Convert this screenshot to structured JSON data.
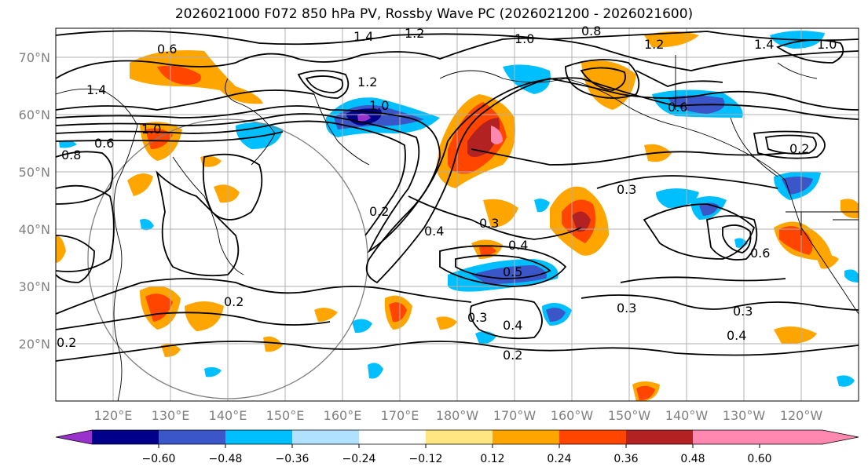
{
  "title": "2026021000 F072 850 hPa PV, Rossby Wave PC (2026021200 - 2026021600)",
  "lat_ticks": [
    "70°N",
    "60°N",
    "50°N",
    "40°N",
    "30°N",
    "20°N"
  ],
  "lon_ticks": [
    "120°E",
    "130°E",
    "140°E",
    "150°E",
    "160°E",
    "170°E",
    "180°W",
    "170°W",
    "160°W",
    "150°W",
    "140°W",
    "130°W",
    "120°W"
  ],
  "colorbar": {
    "ticks": [
      "−0.60",
      "−0.48",
      "−0.36",
      "−0.24",
      "−0.12",
      "0.12",
      "0.24",
      "0.36",
      "0.48",
      "0.60"
    ],
    "colors": [
      "#9932cc",
      "#00008b",
      "#3a56c8",
      "#00bfff",
      "#b0e2ff",
      "#ffffff",
      "#ffe680",
      "#ffa500",
      "#ff4500",
      "#b22222",
      "#ff88b0"
    ]
  },
  "contour_labels": [
    "1.4",
    "1.2",
    "1.0",
    "0.8",
    "1.0",
    "1.4",
    "1.2",
    "0.6",
    "0.8",
    "0.6",
    "1.0",
    "1.2",
    "0.2",
    "0.4",
    "0.3",
    "0.3",
    "0.4",
    "0.5",
    "0.4",
    "0.3",
    "0.3",
    "0.3",
    "0.4",
    "0.2",
    "0.2",
    "0.2",
    "0.6",
    "0.2",
    "1.0",
    "1.4",
    "0.6"
  ]
}
